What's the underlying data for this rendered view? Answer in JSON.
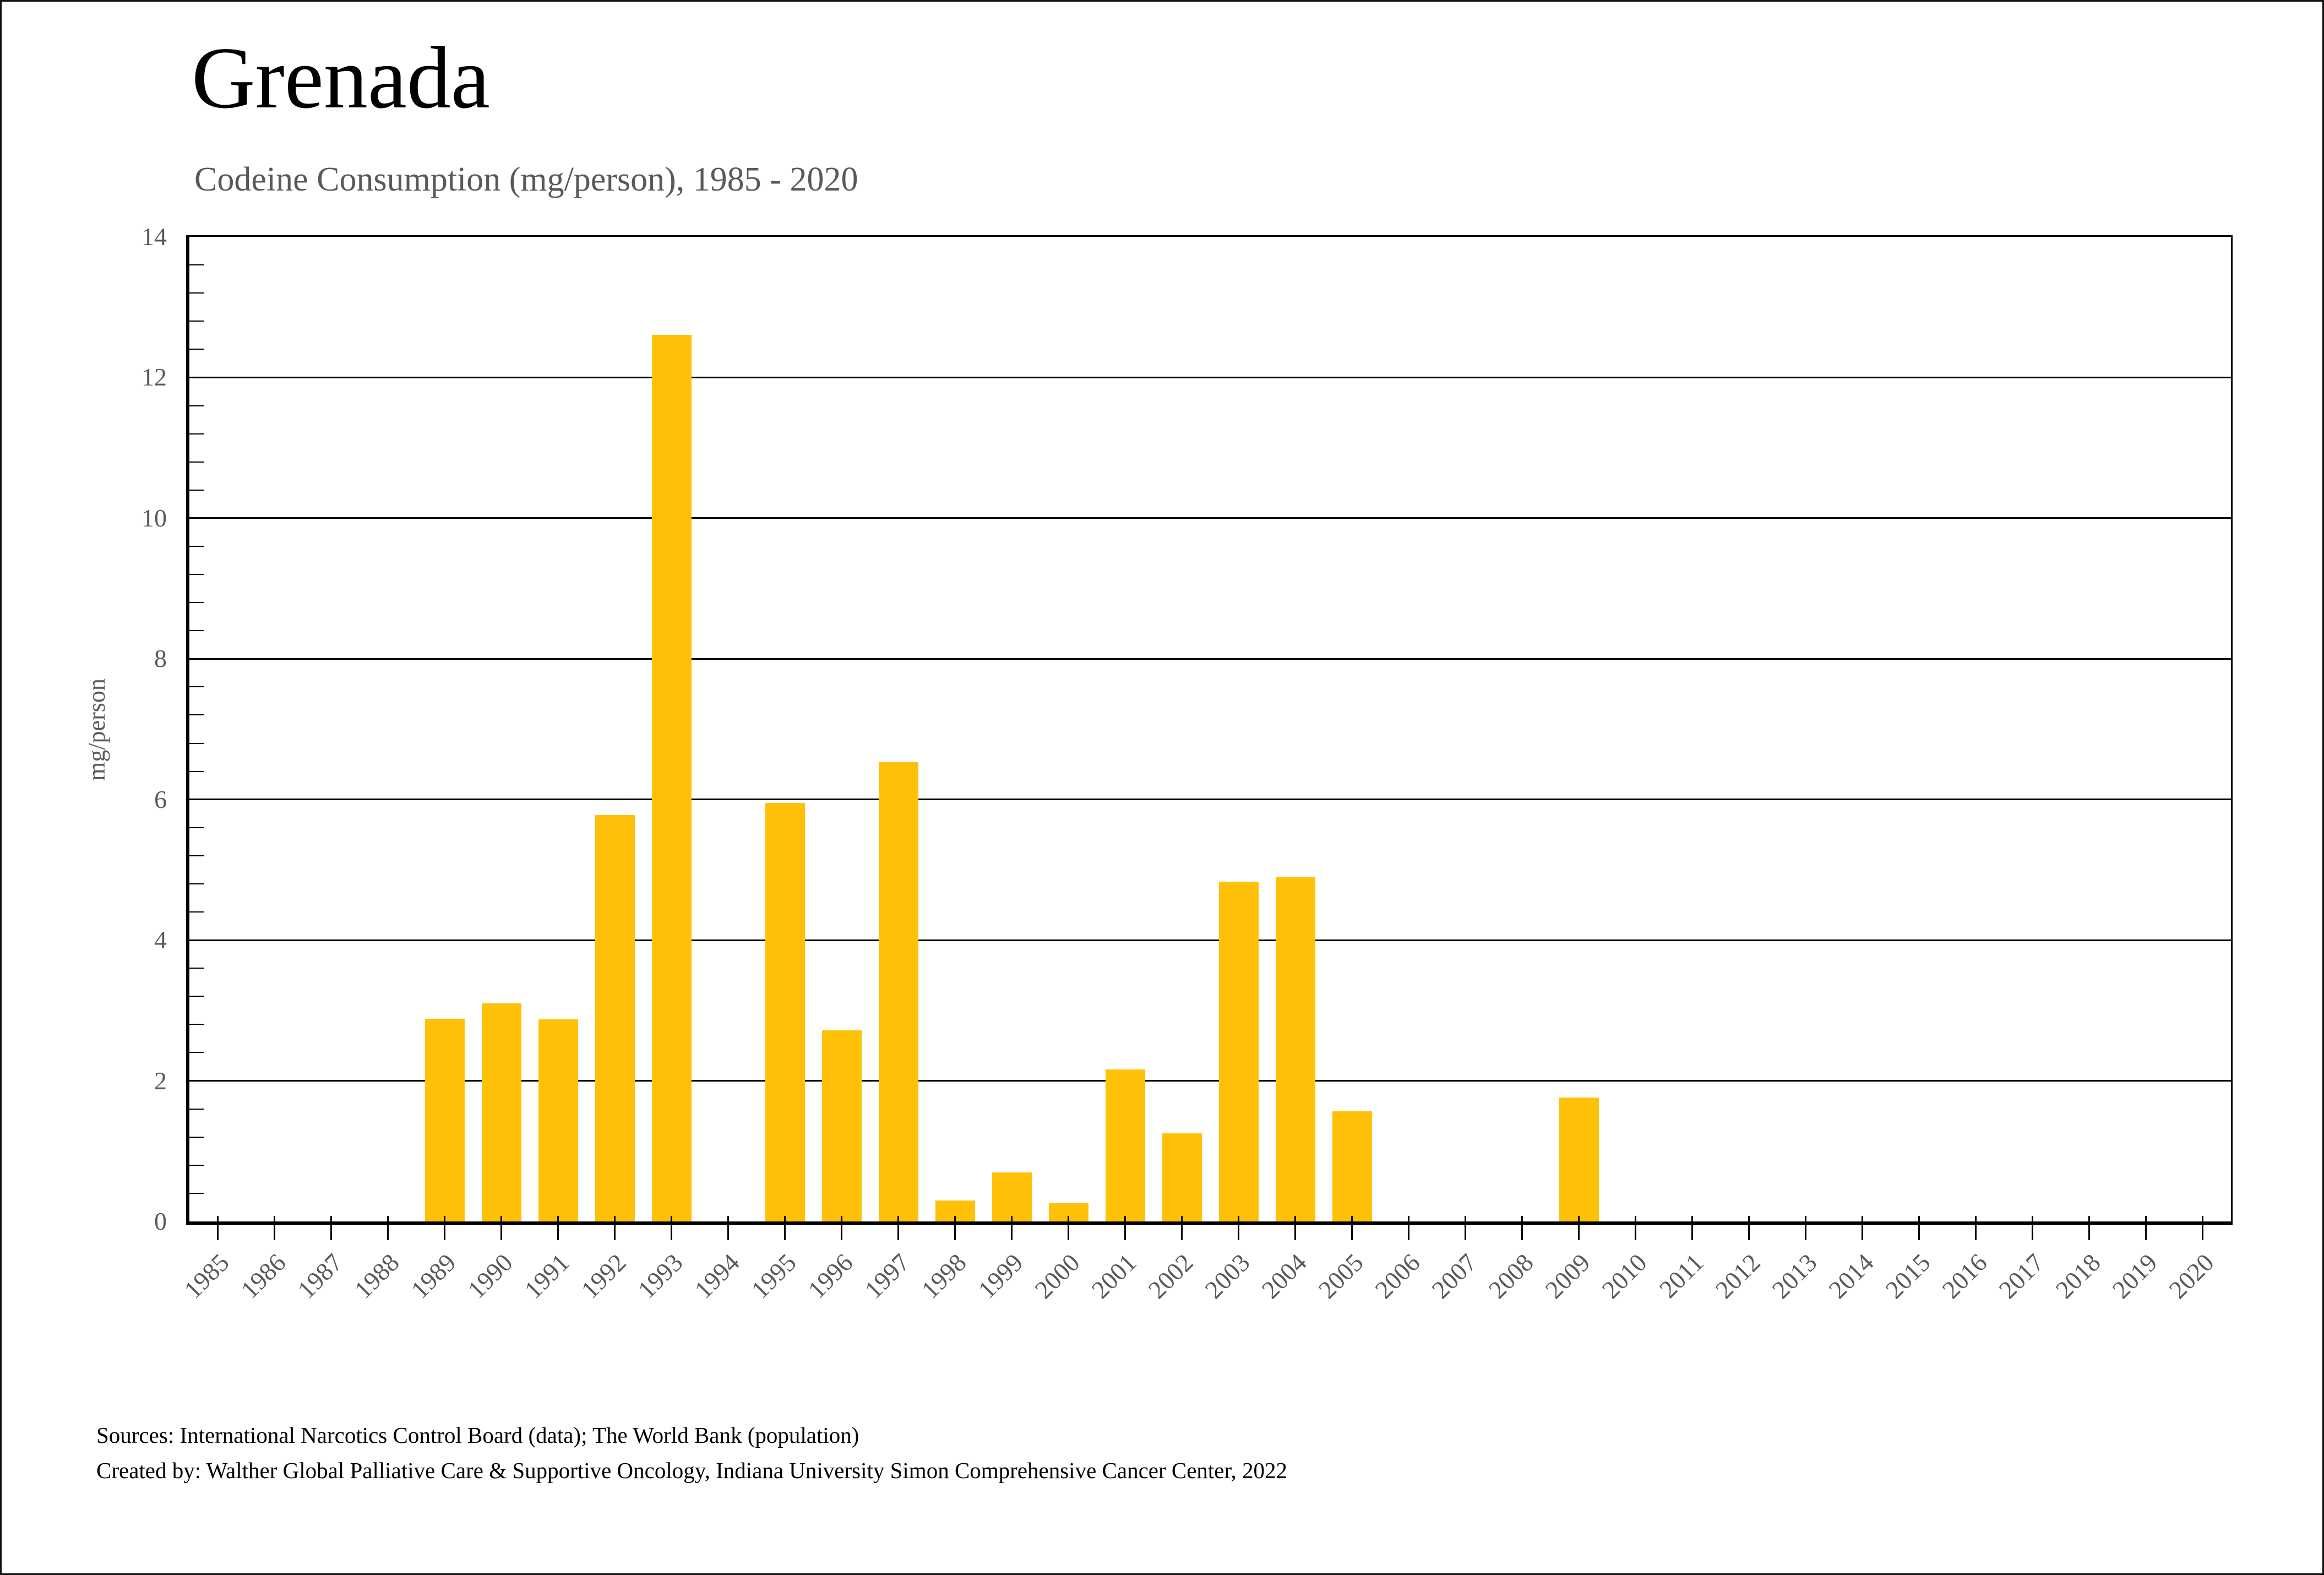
{
  "title": "Grenada",
  "subtitle": "Codeine Consumption (mg/person), 1985 - 2020",
  "y_axis": {
    "label": "mg/person",
    "min": 0,
    "max": 14,
    "major_tick_step": 2,
    "minor_tick_step": 0.4
  },
  "footer": {
    "line1": "Sources: International Narcotics Control Board (data); The World Bank (population)",
    "line2": "Created by: Walther Global Palliative Care & Supportive Oncology, Indiana University Simon Comprehensive Cancer Center, 2022"
  },
  "colors": {
    "bar": "#FFC107",
    "axis_text": "#595959",
    "grid": "#000000",
    "title_text": "#000000"
  },
  "chart_data": {
    "type": "bar",
    "title": "Grenada",
    "subtitle": "Codeine Consumption (mg/person), 1985 - 2020",
    "xlabel": "",
    "ylabel": "mg/person",
    "ylim": [
      0,
      14
    ],
    "yticks": [
      0,
      2,
      4,
      6,
      8,
      10,
      12,
      14
    ],
    "grid": "horizontal-major",
    "legend": "none",
    "bar_color": "#FFC107",
    "categories": [
      "1985",
      "1986",
      "1987",
      "1988",
      "1989",
      "1990",
      "1991",
      "1992",
      "1993",
      "1994",
      "1995",
      "1996",
      "1997",
      "1998",
      "1999",
      "2000",
      "2001",
      "2002",
      "2003",
      "2004",
      "2005",
      "2006",
      "2007",
      "2008",
      "2009",
      "2010",
      "2011",
      "2012",
      "2013",
      "2014",
      "2015",
      "2016",
      "2017",
      "2018",
      "2019",
      "2020"
    ],
    "values": [
      0,
      0,
      0,
      0,
      2.88,
      3.1,
      2.87,
      5.78,
      12.61,
      0,
      5.95,
      2.72,
      6.53,
      0.3,
      0.7,
      0.26,
      2.16,
      1.25,
      4.83,
      4.89,
      1.57,
      0,
      0,
      0,
      1.76,
      0,
      0,
      0,
      0,
      0,
      0,
      0,
      0,
      0,
      0,
      0
    ]
  }
}
